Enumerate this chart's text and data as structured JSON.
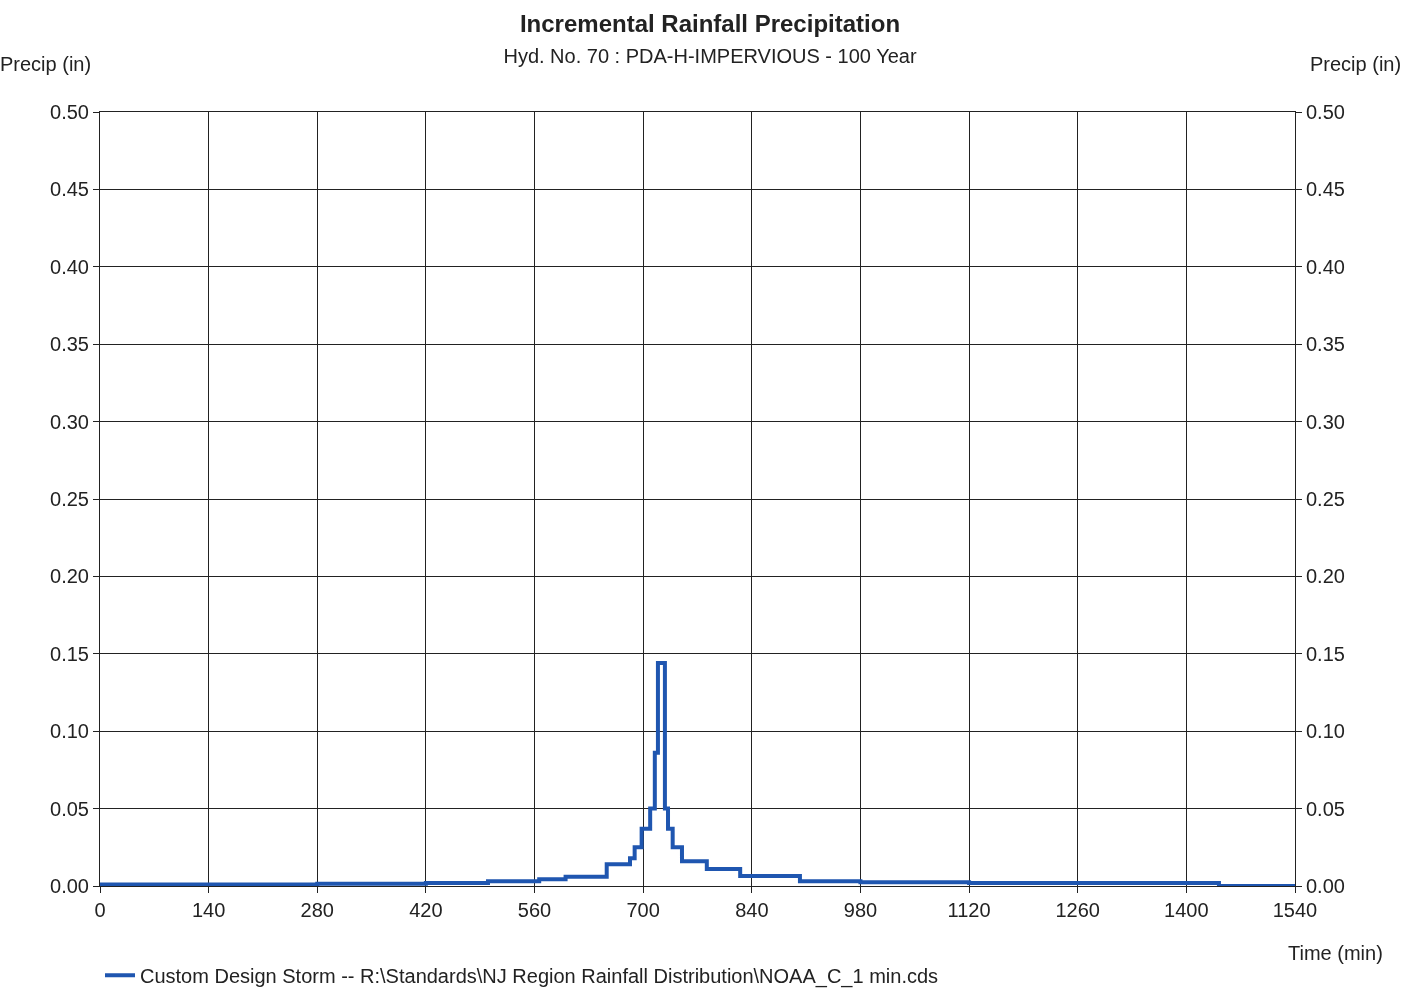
{
  "chart_data": {
    "type": "step",
    "title": "Incremental Rainfall Precipitation",
    "subtitle": "Hyd. No. 70 : PDA-H-IMPERVIOUS - 100 Year",
    "xlabel": "Time (min)",
    "ylabel": "Precip (in)",
    "y2label": "Precip (in)",
    "x": [
      0,
      140,
      280,
      420,
      500,
      566,
      600,
      653,
      683,
      689,
      698,
      709,
      715,
      719,
      728,
      732,
      738,
      750,
      782,
      825,
      902,
      980,
      1120,
      1260,
      1440,
      1442,
      1540
    ],
    "series": [
      {
        "name": "Custom Design Storm -- R:\\Standards\\NJ Region Rainfall Distribution\\NOAA_C_1 min.cds",
        "color": "#1f56b0",
        "values": [
          0.001,
          0.001,
          0.0015,
          0.002,
          0.003,
          0.0044,
          0.006,
          0.014,
          0.018,
          0.025,
          0.037,
          0.05,
          0.086,
          0.144,
          0.05,
          0.037,
          0.025,
          0.016,
          0.011,
          0.0065,
          0.003,
          0.0025,
          0.002,
          0.002,
          0.002,
          0.0,
          0.0
        ]
      }
    ],
    "xlim": [
      0,
      1540
    ],
    "xticks": [
      0,
      140,
      280,
      420,
      560,
      700,
      840,
      980,
      1120,
      1260,
      1400,
      1540
    ],
    "ylim": [
      0,
      0.5
    ],
    "yticks": [
      {
        "value": 0,
        "label": "0.00"
      },
      {
        "value": 0.05,
        "label": "0.05"
      },
      {
        "value": 0.1,
        "label": "0.10"
      },
      {
        "value": 0.15,
        "label": "0.15"
      },
      {
        "value": 0.2,
        "label": "0.20"
      },
      {
        "value": 0.25,
        "label": "0.25"
      },
      {
        "value": 0.3,
        "label": "0.30"
      },
      {
        "value": 0.35,
        "label": "0.35"
      },
      {
        "value": 0.4,
        "label": "0.40"
      },
      {
        "value": 0.45,
        "label": "0.45"
      },
      {
        "value": 0.5,
        "label": "0.50"
      }
    ],
    "y2lim": [
      0,
      0.5
    ],
    "y2ticks": [
      {
        "value": 0,
        "label": "0.00"
      },
      {
        "value": 0.05,
        "label": "0.05"
      },
      {
        "value": 0.1,
        "label": "0.10"
      },
      {
        "value": 0.15,
        "label": "0.15"
      },
      {
        "value": 0.2,
        "label": "0.20"
      },
      {
        "value": 0.25,
        "label": "0.25"
      },
      {
        "value": 0.3,
        "label": "0.30"
      },
      {
        "value": 0.35,
        "label": "0.35"
      },
      {
        "value": 0.4,
        "label": "0.40"
      },
      {
        "value": 0.45,
        "label": "0.45"
      },
      {
        "value": 0.5,
        "label": "0.50"
      }
    ],
    "grid": true,
    "legend": "bottom",
    "line_style": "solid"
  }
}
